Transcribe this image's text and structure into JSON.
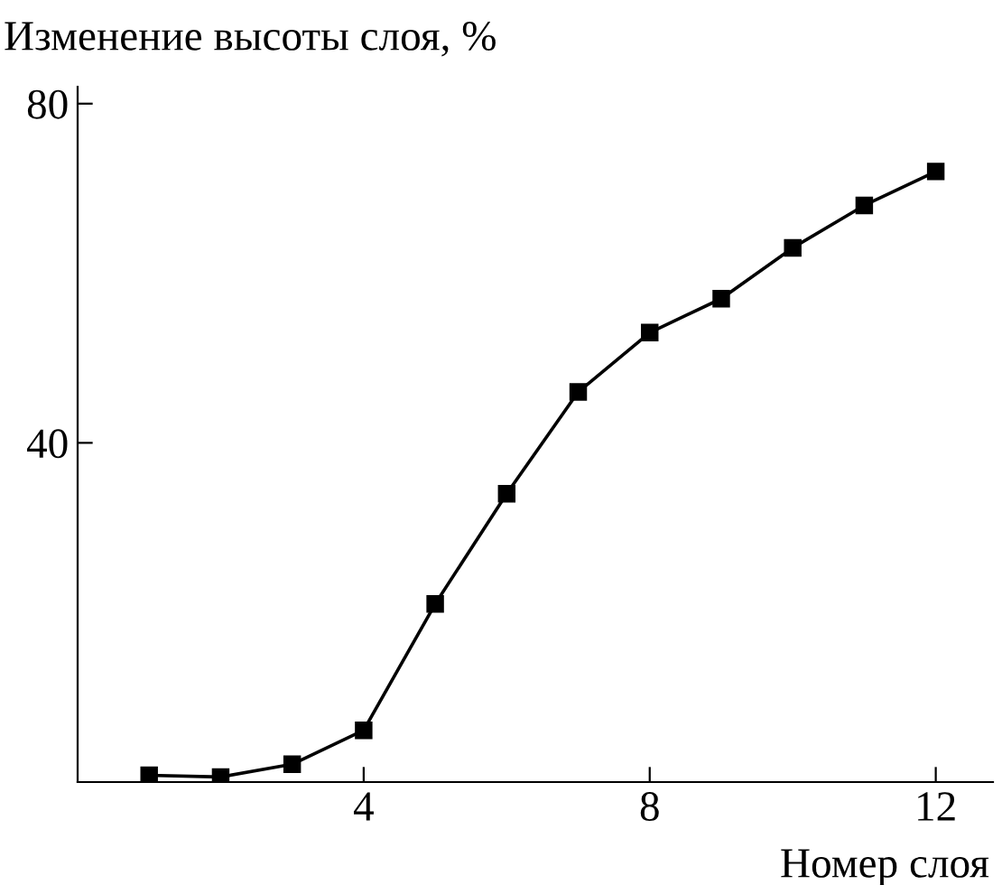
{
  "chart_data": {
    "type": "line",
    "ylabel": "Изменение высоты слоя, %",
    "xlabel": "Номер слоя",
    "x": [
      1,
      2,
      3,
      4,
      5,
      6,
      7,
      8,
      9,
      10,
      11,
      12
    ],
    "values": [
      0.8,
      0.6,
      2.1,
      6.1,
      21,
      34,
      46,
      53,
      57,
      63,
      68,
      72
    ],
    "color": "#000000",
    "marker": "square",
    "line_style": "solid",
    "grid": false,
    "legend": false,
    "xlim": [
      0,
      12.8
    ],
    "xticks": [
      4,
      8,
      12
    ],
    "ylim": [
      0,
      82
    ],
    "yticks": [
      40,
      80
    ]
  }
}
